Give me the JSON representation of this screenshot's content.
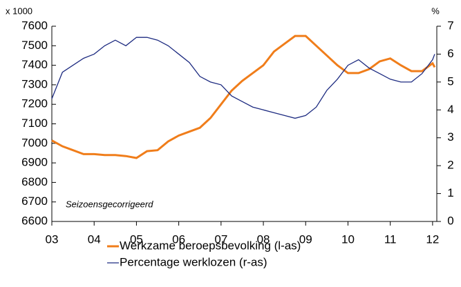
{
  "chart_data": {
    "type": "line",
    "y_unit": "x 1000",
    "y2_unit": "%",
    "annotation": "Seizoensgecorrigeerd",
    "x": [
      3.0,
      3.25,
      3.5,
      3.75,
      4.0,
      4.25,
      4.5,
      4.75,
      5.0,
      5.25,
      5.5,
      5.75,
      6.0,
      6.25,
      6.5,
      6.75,
      7.0,
      7.25,
      7.5,
      7.75,
      8.0,
      8.25,
      8.5,
      8.75,
      9.0,
      9.25,
      9.5,
      9.75,
      10.0,
      10.25,
      10.5,
      10.75,
      11.0,
      11.25,
      11.5,
      11.75,
      12.0,
      12.05
    ],
    "series": [
      {
        "name": "Werkzame beroepsbevolking (l-as)",
        "color": "#f07d1a",
        "axis": "y",
        "values": [
          7015,
          6985,
          6965,
          6945,
          6945,
          6940,
          6940,
          6935,
          6925,
          6960,
          6965,
          7010,
          7040,
          7060,
          7080,
          7130,
          7200,
          7270,
          7320,
          7360,
          7400,
          7470,
          7510,
          7550,
          7550,
          7500,
          7450,
          7400,
          7360,
          7360,
          7380,
          7420,
          7435,
          7400,
          7370,
          7370,
          7410,
          7390
        ]
      },
      {
        "name": "Percentage werklozen (r-as)",
        "color": "#1c2a80",
        "axis": "y2",
        "values": [
          4.4,
          5.35,
          5.6,
          5.85,
          6.0,
          6.3,
          6.5,
          6.3,
          6.6,
          6.6,
          6.5,
          6.3,
          6.0,
          5.7,
          5.2,
          5.0,
          4.9,
          4.5,
          4.3,
          4.1,
          4.0,
          3.9,
          3.8,
          3.7,
          3.8,
          4.1,
          4.7,
          5.1,
          5.6,
          5.8,
          5.5,
          5.3,
          5.1,
          5.0,
          5.0,
          5.3,
          5.8,
          6.0
        ]
      }
    ],
    "xlim": [
      3,
      12.1
    ],
    "xticks": [
      {
        "value": 3,
        "label": "03"
      },
      {
        "value": 4,
        "label": "04"
      },
      {
        "value": 5,
        "label": "05"
      },
      {
        "value": 6,
        "label": "06"
      },
      {
        "value": 7,
        "label": "07"
      },
      {
        "value": 8,
        "label": "08"
      },
      {
        "value": 9,
        "label": "09"
      },
      10,
      11,
      12
    ],
    "ylim": [
      6600,
      7600
    ],
    "yticks": [
      6600,
      6700,
      6800,
      6900,
      7000,
      7100,
      7200,
      7300,
      7400,
      7500,
      7600
    ],
    "y2lim": [
      0,
      7
    ],
    "y2ticks": [
      0,
      1,
      2,
      3,
      4,
      5,
      6,
      7
    ],
    "grid": false
  }
}
